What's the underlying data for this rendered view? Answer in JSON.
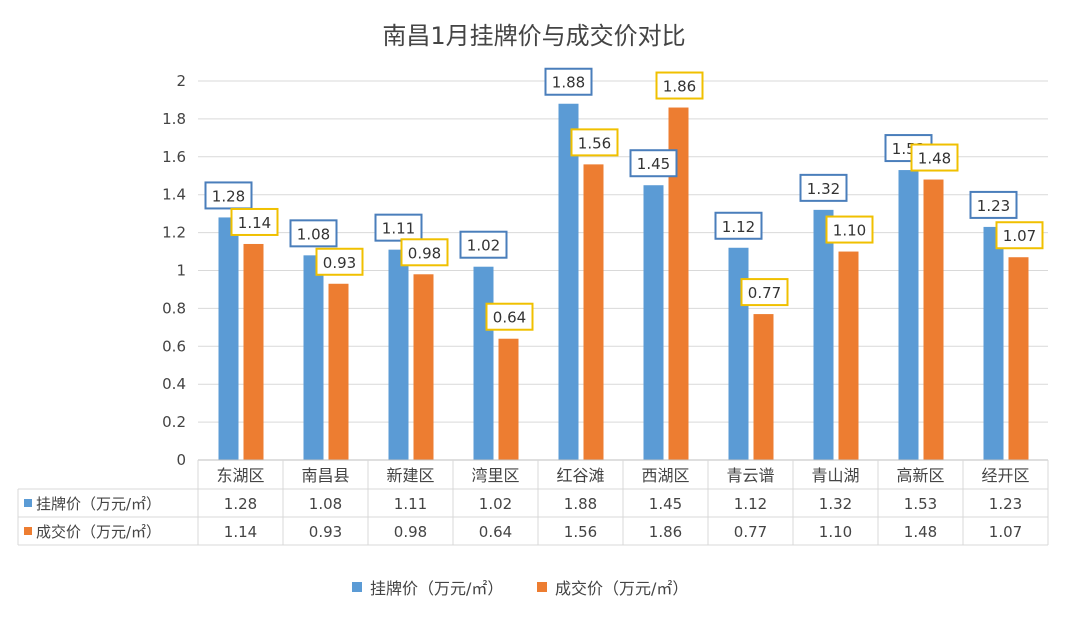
{
  "chart_data": {
    "type": "bar",
    "title": "南昌1月挂牌价与成交价对比",
    "categories": [
      "东湖区",
      "南昌县",
      "新建区",
      "湾里区",
      "红谷滩",
      "西湖区",
      "青云谱",
      "青山湖",
      "高新区",
      "经开区"
    ],
    "series": [
      {
        "name": "挂牌价（万元/㎡）",
        "color": "#5b9bd5",
        "label_border": "#4a7ebb",
        "values": [
          1.28,
          1.08,
          1.11,
          1.02,
          1.88,
          1.45,
          1.12,
          1.32,
          1.53,
          1.23
        ],
        "labels": [
          "1.28",
          "1.08",
          "1.11",
          "1.02",
          "1.88",
          "1.45",
          "1.12",
          "1.32",
          "1.53",
          "1.23"
        ]
      },
      {
        "name": "成交价（万元/㎡）",
        "color": "#ed7d31",
        "label_border": "#f0c000",
        "values": [
          1.14,
          0.93,
          0.98,
          0.64,
          1.56,
          1.86,
          0.77,
          1.1,
          1.48,
          1.07
        ],
        "labels": [
          "1.14",
          "0.93",
          "0.98",
          "0.64",
          "1.56",
          "1.86",
          "0.77",
          "1.10",
          "1.48",
          "1.07"
        ]
      }
    ],
    "ylim": [
      0,
      2
    ],
    "yticks": [
      "0",
      "0.2",
      "0.4",
      "0.6",
      "0.8",
      "1",
      "1.2",
      "1.4",
      "1.6",
      "1.8",
      "2"
    ],
    "grid": true,
    "legend": "bottom",
    "data_table": true
  }
}
